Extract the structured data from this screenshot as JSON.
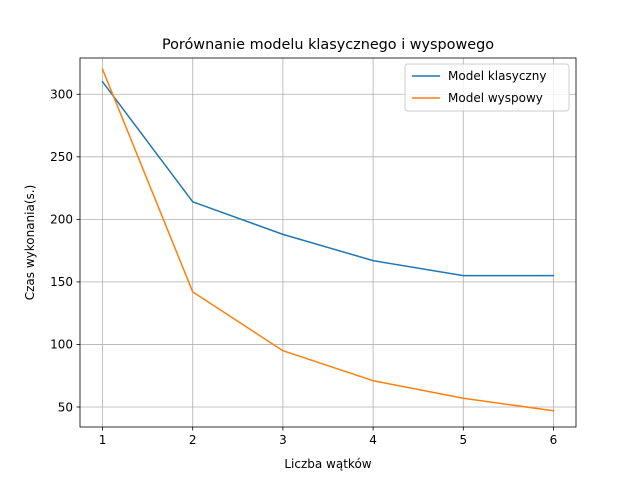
{
  "chart_data": {
    "type": "line",
    "title": "Porównanie modelu klasycznego i wyspowego",
    "xlabel": "Liczba wątków",
    "ylabel": "Czas wykonania(s.)",
    "x": [
      1,
      2,
      3,
      4,
      5,
      6
    ],
    "xticks": [
      1,
      2,
      3,
      4,
      5,
      6
    ],
    "yticks": [
      50,
      100,
      150,
      200,
      250,
      300
    ],
    "xlim": [
      0.75,
      6.25
    ],
    "ylim": [
      34,
      329
    ],
    "grid": true,
    "legend_position": "top-right",
    "series": [
      {
        "name": "Model klasyczny",
        "color": "#1f77b4",
        "values": [
          310,
          214,
          188,
          167,
          155,
          155
        ]
      },
      {
        "name": "Model wyspowy",
        "color": "#ff7f0e",
        "values": [
          320,
          142,
          95,
          71,
          57,
          47
        ]
      }
    ]
  }
}
